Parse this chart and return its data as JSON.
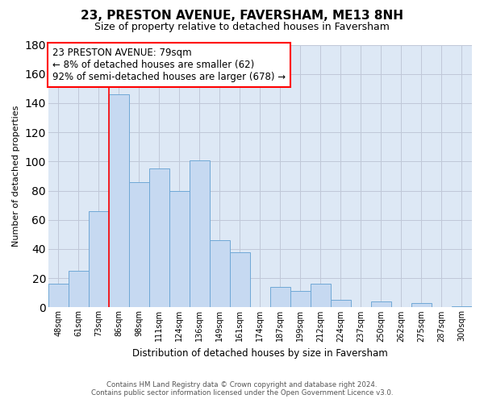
{
  "title": "23, PRESTON AVENUE, FAVERSHAM, ME13 8NH",
  "subtitle": "Size of property relative to detached houses in Faversham",
  "xlabel": "Distribution of detached houses by size in Faversham",
  "ylabel": "Number of detached properties",
  "bar_labels": [
    "48sqm",
    "61sqm",
    "73sqm",
    "86sqm",
    "98sqm",
    "111sqm",
    "124sqm",
    "136sqm",
    "149sqm",
    "161sqm",
    "174sqm",
    "187sqm",
    "199sqm",
    "212sqm",
    "224sqm",
    "237sqm",
    "250sqm",
    "262sqm",
    "275sqm",
    "287sqm",
    "300sqm"
  ],
  "bar_values": [
    16,
    25,
    66,
    146,
    86,
    95,
    80,
    101,
    46,
    38,
    0,
    14,
    11,
    16,
    5,
    0,
    4,
    0,
    3,
    0,
    1
  ],
  "bar_color": "#c6d9f1",
  "bar_edge_color": "#6fa8d6",
  "ylim": [
    0,
    180
  ],
  "yticks": [
    0,
    20,
    40,
    60,
    80,
    100,
    120,
    140,
    160,
    180
  ],
  "grid_color": "#c0c8d8",
  "annotation_line1": "23 PRESTON AVENUE: 79sqm",
  "annotation_line2": "← 8% of detached houses are smaller (62)",
  "annotation_line3": "92% of semi-detached houses are larger (678) →",
  "redline_bar_idx": 2,
  "footer_line1": "Contains HM Land Registry data © Crown copyright and database right 2024.",
  "footer_line2": "Contains public sector information licensed under the Open Government Licence v3.0.",
  "background_color": "#ffffff",
  "plot_bg_color": "#dde8f5"
}
